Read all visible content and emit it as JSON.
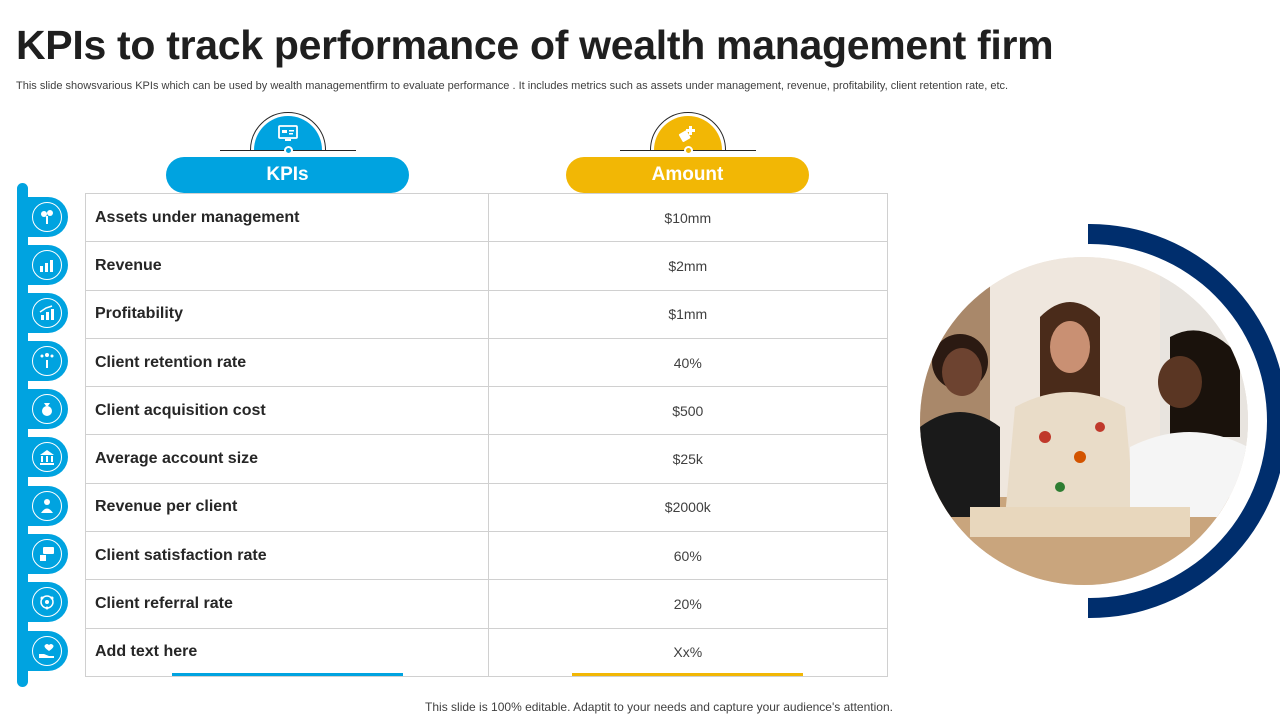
{
  "title": "KPIs to track performance of wealth management firm",
  "subtitle": "This slide showsvarious KPIs which can be used by wealth managementfirm to evaluate performance . It includes metrics such as assets under management, revenue, profitability, client retention rate, etc.",
  "columns": {
    "kpis": "KPIs",
    "amount": "Amount"
  },
  "rows": [
    {
      "kpi": "Assets under management",
      "amount": "$10mm",
      "icon": "money-tree-icon"
    },
    {
      "kpi": "Revenue",
      "amount": "$2mm",
      "icon": "bar-chart-icon"
    },
    {
      "kpi": "Profitability",
      "amount": "$1mm",
      "icon": "growth-chart-icon"
    },
    {
      "kpi": "Client retention rate",
      "amount": "40%",
      "icon": "hand-stars-icon"
    },
    {
      "kpi": "Client acquisition cost",
      "amount": "$500",
      "icon": "money-bag-icon"
    },
    {
      "kpi": "Average account size",
      "amount": "$25k",
      "icon": "bank-icon"
    },
    {
      "kpi": "Revenue per client",
      "amount": "$2000k",
      "icon": "client-dollar-icon"
    },
    {
      "kpi": "Client satisfaction rate",
      "amount": "60%",
      "icon": "chat-thumbs-up-icon"
    },
    {
      "kpi": "Client referral rate",
      "amount": "20%",
      "icon": "referral-network-icon"
    },
    {
      "kpi": "Add text here",
      "amount": "Xx%",
      "icon": "hand-heart-icon"
    }
  ],
  "footer": "This slide is 100% editable. Adaptit to your needs and capture your audience's attention.",
  "colors": {
    "accent_blue": "#00a3e0",
    "accent_yellow": "#f2b705",
    "navy": "#002e6d"
  }
}
